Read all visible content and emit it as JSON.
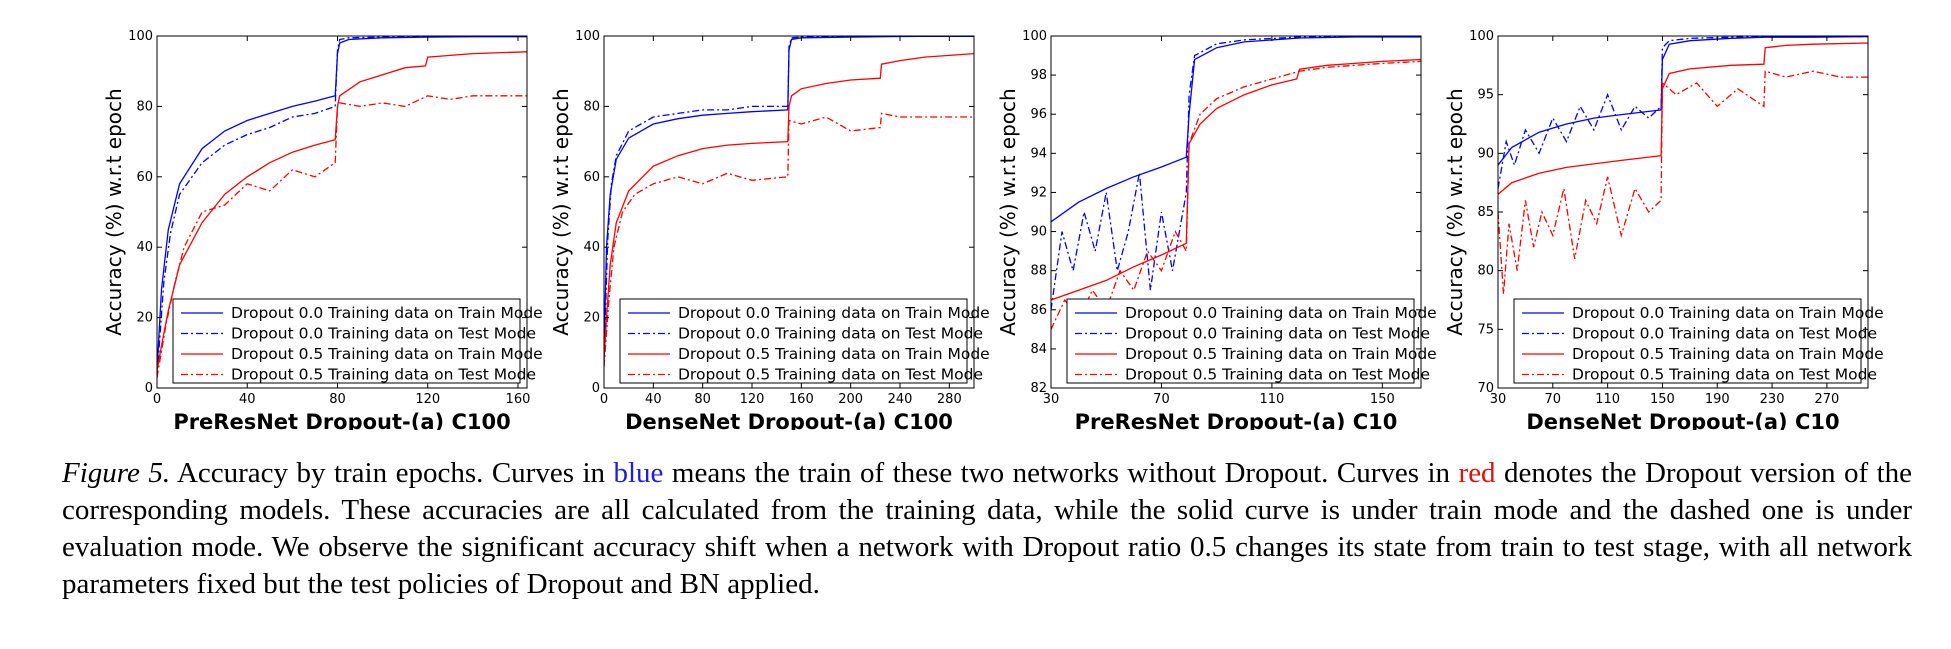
{
  "chart_data": [
    {
      "type": "line",
      "xlabel": "PreResNet Dropout-(a) C100",
      "ylabel": "Accuracy (%) w.r.t epoch",
      "xlim": [
        0,
        164
      ],
      "ylim": [
        0,
        100
      ],
      "xticks": [
        0,
        40,
        80,
        120,
        160
      ],
      "yticks": [
        0,
        20,
        40,
        60,
        80,
        100
      ],
      "legend": "lower-right",
      "drop_epochs": [
        80,
        120
      ],
      "series": [
        {
          "name": "Dropout 0.0 Training data on Train Mode",
          "color": "#0000ff",
          "style": "solid",
          "x": [
            0,
            2,
            5,
            10,
            20,
            30,
            40,
            50,
            60,
            70,
            79,
            80,
            81,
            85,
            100,
            120,
            140,
            164
          ],
          "y": [
            5,
            28,
            45,
            58,
            68,
            73,
            76,
            78,
            80,
            81.5,
            83,
            95,
            98,
            99,
            99.5,
            99.7,
            99.8,
            99.8
          ]
        },
        {
          "name": "Dropout 0.0 Training data on Test Mode",
          "color": "#0000ff",
          "style": "dashdot",
          "x": [
            0,
            3,
            6,
            10,
            20,
            30,
            40,
            50,
            60,
            70,
            79,
            80,
            81,
            85,
            100,
            120,
            140,
            164
          ],
          "y": [
            3,
            30,
            44,
            55,
            64,
            69,
            72,
            74,
            77,
            78,
            80,
            96,
            99,
            99.5,
            99.7,
            99.8,
            99.9,
            99.9
          ]
        },
        {
          "name": "Dropout 0.5 Training data on Train Mode",
          "color": "#ff0000",
          "style": "solid",
          "x": [
            0,
            2,
            5,
            10,
            20,
            30,
            40,
            50,
            60,
            70,
            79,
            80,
            81,
            90,
            100,
            110,
            119,
            120,
            130,
            140,
            164
          ],
          "y": [
            5,
            12,
            22,
            35,
            47,
            55,
            60,
            64,
            67,
            69,
            70.5,
            80,
            83,
            87,
            89,
            91,
            91.5,
            94,
            94.5,
            95,
            95.5
          ]
        },
        {
          "name": "Dropout 0.5 Training data on Test Mode",
          "color": "#ff0000",
          "style": "dashdot",
          "x": [
            0,
            4,
            8,
            12,
            20,
            30,
            40,
            50,
            60,
            70,
            79,
            80,
            81,
            90,
            100,
            110,
            120,
            130,
            140,
            150,
            164
          ],
          "y": [
            3,
            18,
            30,
            40,
            50,
            52,
            58,
            56,
            62,
            60,
            64,
            80,
            81,
            80,
            81,
            80,
            83,
            82,
            83,
            83,
            83
          ]
        }
      ]
    },
    {
      "type": "line",
      "xlabel": "DenseNet Dropout-(a) C100",
      "ylabel": "Accuracy (%) w.r.t epoch",
      "xlim": [
        0,
        300
      ],
      "ylim": [
        0,
        100
      ],
      "xticks": [
        0,
        40,
        80,
        120,
        160,
        200,
        240,
        280
      ],
      "yticks": [
        0,
        20,
        40,
        60,
        80,
        100
      ],
      "legend": "lower-right",
      "drop_epochs": [
        150,
        225
      ],
      "series": [
        {
          "name": "Dropout 0.0 Training data on Train Mode",
          "color": "#0000ff",
          "style": "solid",
          "x": [
            0,
            2,
            5,
            10,
            20,
            40,
            60,
            80,
            100,
            120,
            149,
            150,
            152,
            160,
            200,
            225,
            260,
            300
          ],
          "y": [
            10,
            40,
            55,
            65,
            71,
            75,
            76.5,
            77.5,
            78,
            78.5,
            79,
            96,
            99,
            99.5,
            99.7,
            99.8,
            99.9,
            99.9
          ]
        },
        {
          "name": "Dropout 0.0 Training data on Test Mode",
          "color": "#0000ff",
          "style": "dashdot",
          "x": [
            0,
            3,
            6,
            10,
            20,
            40,
            60,
            80,
            100,
            120,
            149,
            150,
            152,
            160,
            200,
            225,
            260,
            300
          ],
          "y": [
            8,
            42,
            58,
            66,
            73,
            77,
            78,
            79,
            79,
            80,
            80,
            97,
            99.5,
            99.7,
            99.8,
            99.9,
            99.9,
            99.9
          ]
        },
        {
          "name": "Dropout 0.5 Training data on Train Mode",
          "color": "#ff0000",
          "style": "solid",
          "x": [
            0,
            2,
            5,
            10,
            20,
            40,
            60,
            80,
            100,
            120,
            149,
            150,
            152,
            160,
            180,
            200,
            224,
            225,
            240,
            260,
            300
          ],
          "y": [
            8,
            20,
            35,
            47,
            56,
            63,
            66,
            68,
            69,
            69.5,
            70,
            80,
            83,
            85,
            86.5,
            87.5,
            88,
            92,
            93,
            94,
            95
          ]
        },
        {
          "name": "Dropout 0.5 Training data on Test Mode",
          "color": "#ff0000",
          "style": "dashdot",
          "x": [
            0,
            4,
            8,
            15,
            25,
            40,
            60,
            80,
            100,
            120,
            149,
            150,
            160,
            180,
            200,
            224,
            225,
            240,
            260,
            300
          ],
          "y": [
            6,
            25,
            40,
            50,
            55,
            58,
            60,
            58,
            61,
            59,
            60,
            76,
            75,
            77,
            73,
            74,
            78,
            77,
            77,
            77
          ]
        }
      ]
    },
    {
      "type": "line",
      "xlabel": "PreResNet Dropout-(a) C10",
      "ylabel": "Accuracy (%) w.r.t epoch",
      "xlim": [
        30,
        164
      ],
      "ylim": [
        82,
        100
      ],
      "xticks": [
        30,
        70,
        110,
        150
      ],
      "yticks": [
        82,
        84,
        86,
        88,
        90,
        92,
        94,
        96,
        98,
        100
      ],
      "legend": "lower-right",
      "drop_epochs": [
        80,
        120
      ],
      "series": [
        {
          "name": "Dropout 0.0 Training data on Train Mode",
          "color": "#0000ff",
          "style": "solid",
          "x": [
            30,
            40,
            50,
            60,
            70,
            79,
            80,
            82,
            90,
            100,
            120,
            140,
            164
          ],
          "y": [
            90.5,
            91.5,
            92.2,
            92.8,
            93.3,
            93.8,
            96,
            98.8,
            99.4,
            99.7,
            99.9,
            99.95,
            99.95
          ]
        },
        {
          "name": "Dropout 0.0 Training data on Test Mode",
          "color": "#0000ff",
          "style": "dashdot",
          "x": [
            30,
            34,
            38,
            42,
            46,
            50,
            54,
            58,
            62,
            66,
            70,
            74,
            79,
            80,
            82,
            90,
            100,
            120,
            140,
            164
          ],
          "y": [
            86,
            90,
            88,
            91,
            89,
            92,
            88,
            90,
            93,
            87,
            91,
            88,
            92,
            97,
            99,
            99.6,
            99.8,
            99.95,
            99.98,
            99.98
          ]
        },
        {
          "name": "Dropout 0.5 Training data on Train Mode",
          "color": "#ff0000",
          "style": "solid",
          "x": [
            30,
            40,
            50,
            60,
            70,
            79,
            80,
            84,
            90,
            100,
            110,
            119,
            120,
            130,
            140,
            150,
            164
          ],
          "y": [
            86.5,
            87,
            87.5,
            88.2,
            88.8,
            89.4,
            94.5,
            95.5,
            96.3,
            97,
            97.5,
            97.8,
            98.3,
            98.5,
            98.6,
            98.7,
            98.8
          ]
        },
        {
          "name": "Dropout 0.5 Training data on Test Mode",
          "color": "#ff0000",
          "style": "dashdot",
          "x": [
            30,
            35,
            40,
            45,
            50,
            55,
            60,
            65,
            70,
            75,
            79,
            80,
            84,
            90,
            100,
            110,
            120,
            130,
            140,
            150,
            164
          ],
          "y": [
            85,
            86.5,
            85.5,
            87,
            86,
            88,
            87,
            89,
            88,
            90,
            89,
            94.5,
            96,
            96.8,
            97.4,
            97.8,
            98.2,
            98.4,
            98.5,
            98.6,
            98.7
          ]
        }
      ]
    },
    {
      "type": "line",
      "xlabel": "DenseNet Dropout-(a) C10",
      "ylabel": "Accuracy (%) w.r.t epoch",
      "xlim": [
        30,
        300
      ],
      "ylim": [
        70,
        100
      ],
      "xticks": [
        30,
        70,
        110,
        150,
        190,
        230,
        270
      ],
      "yticks": [
        70,
        75,
        80,
        85,
        90,
        95,
        100
      ],
      "legend": "lower-right",
      "drop_epochs": [
        150,
        225
      ],
      "series": [
        {
          "name": "Dropout 0.0 Training data on Train Mode",
          "color": "#0000ff",
          "style": "solid",
          "x": [
            30,
            40,
            60,
            80,
            100,
            120,
            149,
            150,
            155,
            170,
            200,
            225,
            260,
            300
          ],
          "y": [
            89,
            90.5,
            91.8,
            92.5,
            93,
            93.3,
            93.7,
            98,
            99.3,
            99.6,
            99.8,
            99.9,
            99.9,
            99.95
          ]
        },
        {
          "name": "Dropout 0.0 Training data on Test Mode",
          "color": "#0000ff",
          "style": "dashdot",
          "x": [
            30,
            36,
            42,
            50,
            60,
            70,
            80,
            90,
            100,
            110,
            120,
            130,
            140,
            149,
            150,
            155,
            170,
            200,
            225,
            260,
            300
          ],
          "y": [
            87,
            91,
            89,
            92,
            90,
            93,
            91,
            94,
            92,
            95,
            92,
            94,
            93,
            94,
            99,
            99.6,
            99.8,
            99.9,
            99.95,
            99.95,
            99.95
          ]
        },
        {
          "name": "Dropout 0.5 Training data on Train Mode",
          "color": "#ff0000",
          "style": "solid",
          "x": [
            30,
            40,
            60,
            80,
            100,
            120,
            149,
            150,
            155,
            170,
            200,
            224,
            225,
            240,
            260,
            300
          ],
          "y": [
            86.5,
            87.5,
            88.3,
            88.8,
            89.1,
            89.4,
            89.8,
            95.5,
            96.8,
            97.2,
            97.5,
            97.6,
            99,
            99.2,
            99.3,
            99.4
          ]
        },
        {
          "name": "Dropout 0.5 Training data on Test Mode",
          "color": "#ff0000",
          "style": "dashdot",
          "x": [
            30,
            34,
            38,
            44,
            50,
            56,
            62,
            70,
            78,
            86,
            94,
            102,
            110,
            120,
            130,
            140,
            149,
            150,
            160,
            175,
            190,
            205,
            224,
            225,
            240,
            260,
            280,
            300
          ],
          "y": [
            85,
            78,
            84,
            80,
            86,
            82,
            85,
            83,
            87,
            81,
            86,
            84,
            88,
            83,
            87,
            85,
            86,
            96,
            95,
            96,
            94,
            95.5,
            94,
            97,
            96.5,
            97,
            96.5,
            96.5
          ]
        }
      ]
    }
  ],
  "caption": {
    "label": "Figure 5.",
    "part1": " Accuracy by train epochs. Curves in ",
    "blue_word": "blue",
    "part2": " means the train of these two networks without Dropout. Curves in ",
    "red_word": "red",
    "part3": " denotes the Dropout version of the corresponding models. These accuracies are all calculated from the training data, while the solid curve is under train mode and the dashed one is under evaluation mode. We observe the significant accuracy shift when a network with Dropout ratio 0.5 changes its state from train to test stage, with all network parameters fixed but the test policies of Dropout and BN applied."
  },
  "colors": {
    "blue": "#0000ff",
    "red": "#ff0000"
  }
}
